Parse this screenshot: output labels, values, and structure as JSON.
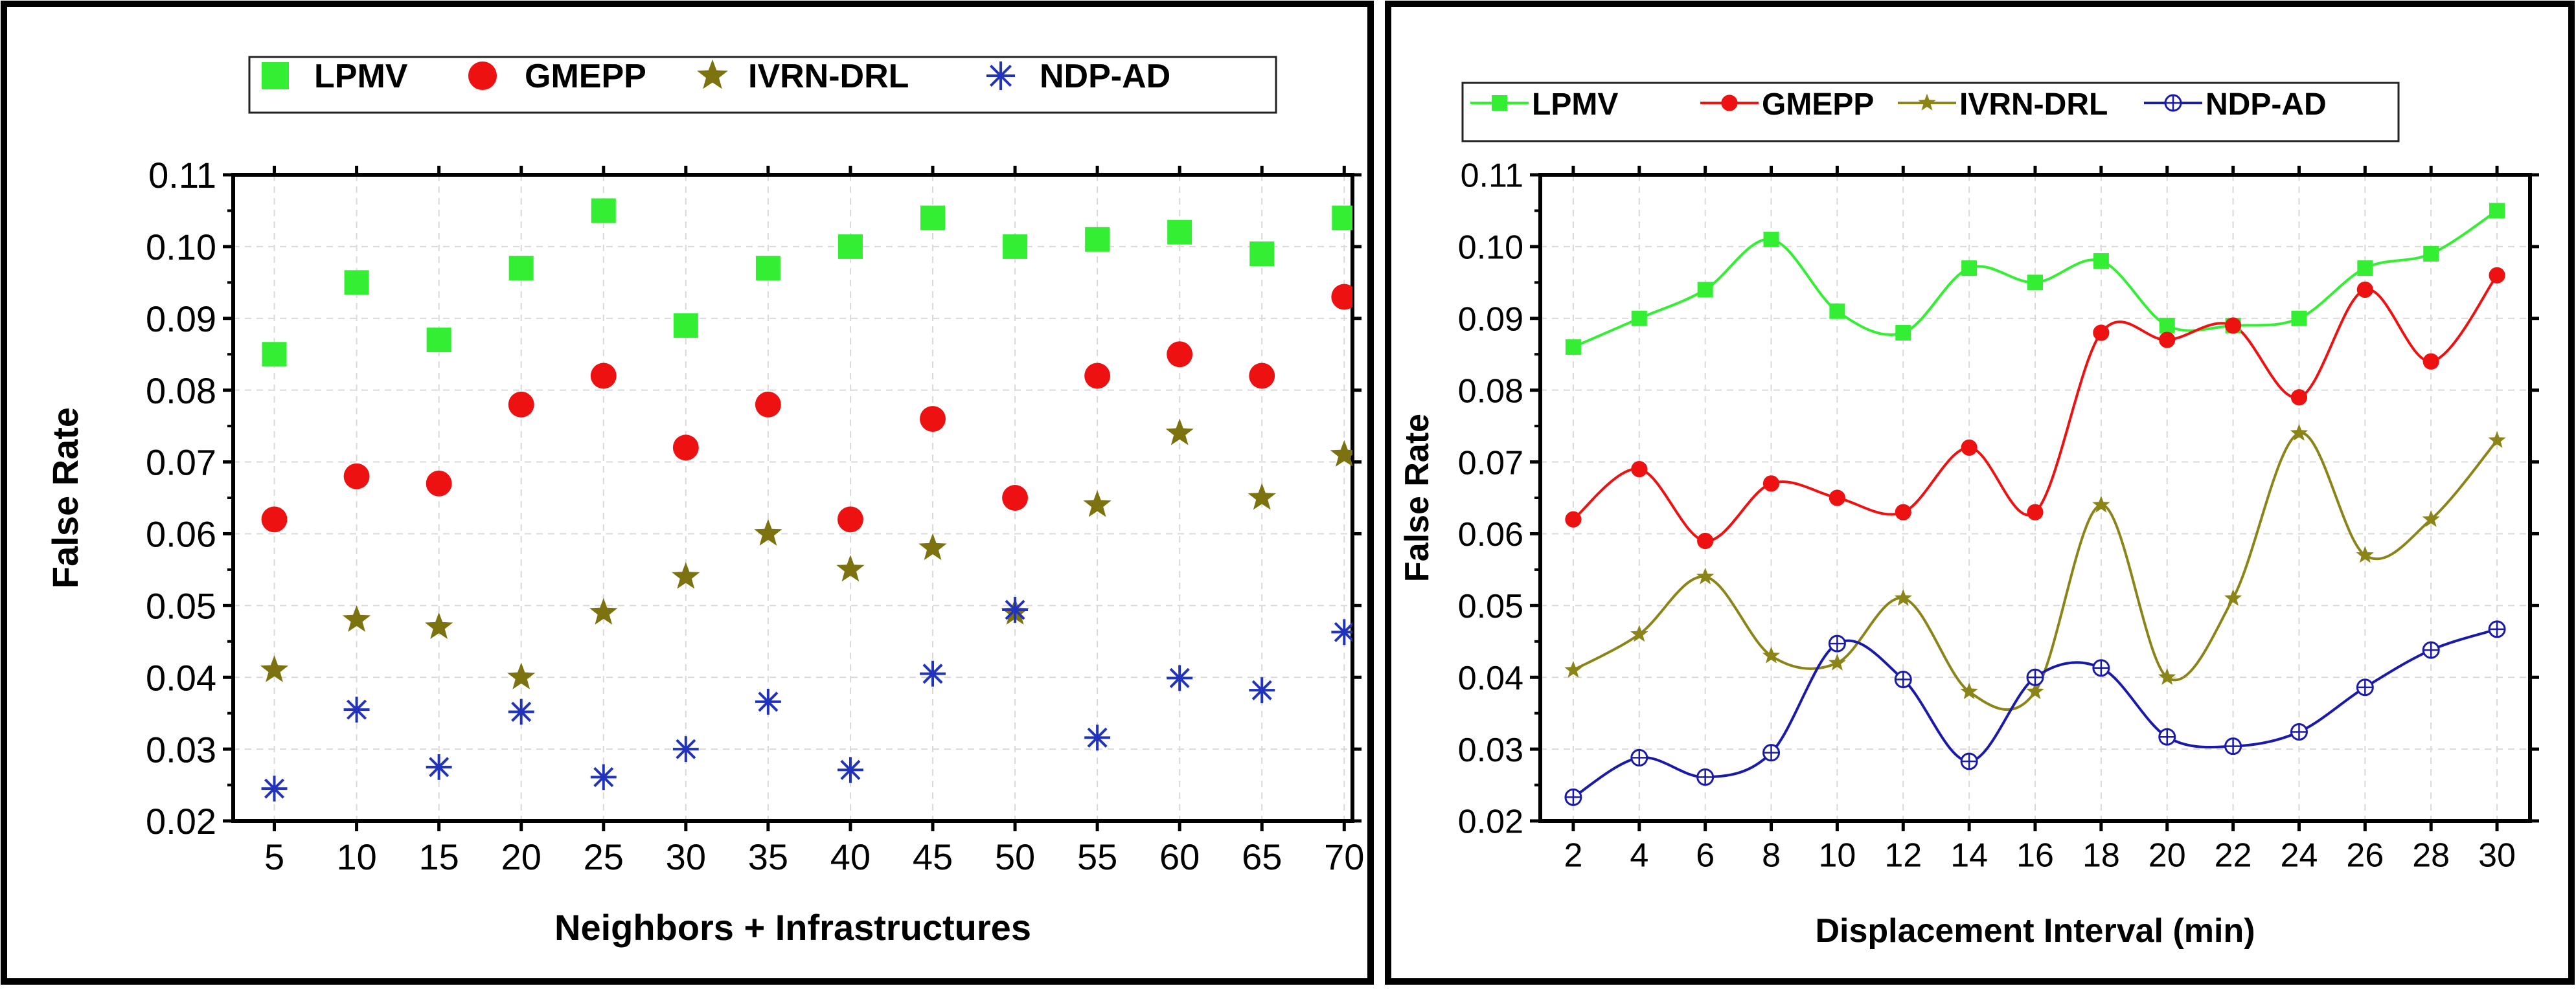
{
  "chart_data": [
    {
      "type": "scatter",
      "title": "",
      "xlabel": "Neighbors + Infrastructures",
      "ylabel": "False Rate",
      "x": [
        5,
        10,
        15,
        20,
        25,
        30,
        35,
        40,
        45,
        50,
        55,
        60,
        65,
        70
      ],
      "xlim": [
        2.5,
        70.5
      ],
      "ylim": [
        0.02,
        0.11
      ],
      "yticks": [
        "0.02",
        "0.03",
        "0.04",
        "0.05",
        "0.06",
        "0.07",
        "0.08",
        "0.09",
        "0.10",
        "0.11"
      ],
      "grid": true,
      "legend_position": "top",
      "series": [
        {
          "name": "LPMV",
          "marker": "square",
          "color": "#33ee33",
          "values": [
            0.085,
            0.095,
            0.087,
            0.097,
            0.105,
            0.089,
            0.097,
            0.1,
            0.104,
            0.1,
            0.101,
            0.102,
            0.099,
            0.104
          ]
        },
        {
          "name": "GMEPP",
          "marker": "circle",
          "color": "#ee1111",
          "values": [
            0.062,
            0.068,
            0.067,
            0.078,
            0.082,
            0.072,
            0.078,
            0.062,
            0.076,
            0.065,
            0.082,
            0.085,
            0.082,
            0.093
          ]
        },
        {
          "name": "IVRN-DRL",
          "marker": "star",
          "color": "#7d7210",
          "values": [
            0.041,
            0.048,
            0.047,
            0.04,
            0.049,
            0.054,
            0.06,
            0.055,
            0.058,
            0.049,
            0.064,
            0.074,
            0.065,
            0.071
          ]
        },
        {
          "name": "NDP-AD",
          "marker": "asterisk",
          "color": "#2233bb",
          "values": [
            0.0245,
            0.0355,
            0.0275,
            0.0352,
            0.0261,
            0.03,
            0.0366,
            0.0271,
            0.0405,
            0.0494,
            0.0316,
            0.0399,
            0.0382,
            0.0463
          ]
        }
      ]
    },
    {
      "type": "line",
      "title": "",
      "xlabel": "Displacement Interval (min)",
      "ylabel": "False Rate",
      "x": [
        2,
        4,
        6,
        8,
        10,
        12,
        14,
        16,
        18,
        20,
        22,
        24,
        26,
        28,
        30
      ],
      "xlim": [
        1,
        31
      ],
      "ylim": [
        0.02,
        0.11
      ],
      "yticks": [
        "0.02",
        "0.03",
        "0.04",
        "0.05",
        "0.06",
        "0.07",
        "0.08",
        "0.09",
        "0.10",
        "0.11"
      ],
      "grid": true,
      "legend_position": "top",
      "series": [
        {
          "name": "LPMV",
          "marker": "square",
          "color": "#33ee33",
          "values": [
            0.086,
            0.09,
            0.094,
            0.101,
            0.091,
            0.088,
            0.097,
            0.095,
            0.098,
            0.089,
            0.089,
            0.09,
            0.097,
            0.099,
            0.105
          ]
        },
        {
          "name": "GMEPP",
          "marker": "circle",
          "color": "#ee1111",
          "values": [
            0.062,
            0.069,
            0.059,
            0.067,
            0.065,
            0.063,
            0.072,
            0.063,
            0.088,
            0.087,
            0.089,
            0.079,
            0.094,
            0.084,
            0.096
          ]
        },
        {
          "name": "IVRN-DRL",
          "marker": "star",
          "color": "#8b8418",
          "values": [
            0.041,
            0.046,
            0.054,
            0.043,
            0.042,
            0.051,
            0.038,
            0.038,
            0.064,
            0.04,
            0.051,
            0.074,
            0.057,
            0.062,
            0.073
          ]
        },
        {
          "name": "NDP-AD",
          "marker": "crosscircle",
          "color": "#1a1aaa",
          "values": [
            0.0233,
            0.0288,
            0.0261,
            0.0295,
            0.0447,
            0.0397,
            0.0283,
            0.04,
            0.0413,
            0.0317,
            0.0304,
            0.0324,
            0.0386,
            0.0438,
            0.0467
          ]
        }
      ]
    }
  ]
}
